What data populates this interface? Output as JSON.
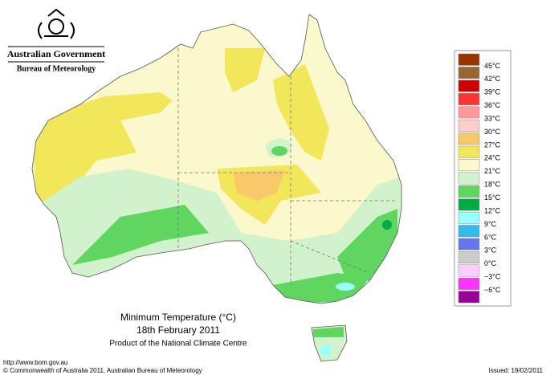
{
  "header": {
    "government": "Australian Government",
    "agency": "Bureau of Meteorology"
  },
  "map": {
    "title": "Minimum Temperature (°C)",
    "date": "18th February 2011",
    "credit": "Product of the National Climate Centre"
  },
  "legend": {
    "labels": [
      "45°C",
      "42°C",
      "39°C",
      "36°C",
      "33°C",
      "30°C",
      "27°C",
      "24°C",
      "21°C",
      "18°C",
      "15°C",
      "12°C",
      "9°C",
      "6°C",
      "3°C",
      "0°C",
      "−3°C",
      "−6°C"
    ],
    "colors": [
      "#993300",
      "#996633",
      "#cc0000",
      "#ff3333",
      "#ff9999",
      "#ffcccc",
      "#f7c96a",
      "#f2e65a",
      "#fbf8cb",
      "#d2f2cc",
      "#5fd65f",
      "#00aa44",
      "#99ffff",
      "#33bbee",
      "#6677ee",
      "#cccccc",
      "#ffccff",
      "#ff33ff",
      "#990099"
    ]
  },
  "footer": {
    "url": "http://www.bom.gov.au",
    "copyright": "© Commonwealth of Australia 2011, Australian Bureau of Meteorology",
    "issued": "Issued: 19/02/2011"
  }
}
